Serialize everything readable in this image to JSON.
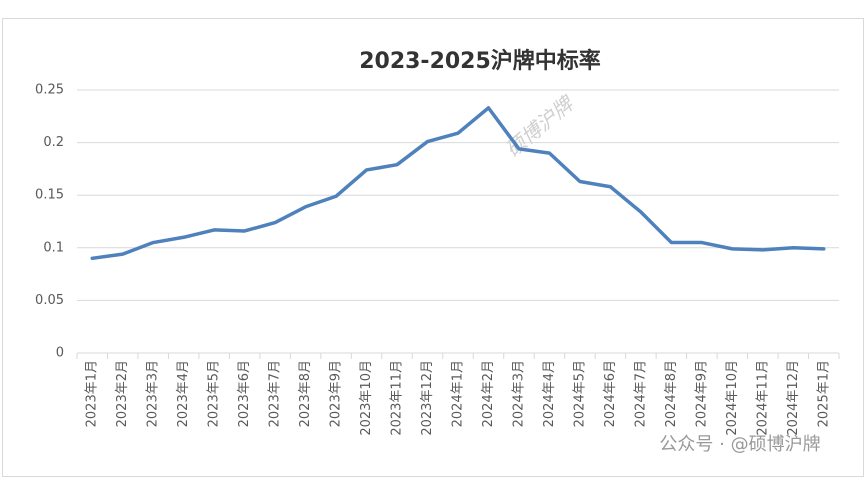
{
  "chart_data": {
    "type": "line",
    "title": "2023-2025沪牌中标率",
    "categories": [
      "2023年1月",
      "2023年2月",
      "2023年3月",
      "2023年4月",
      "2023年5月",
      "2023年6月",
      "2023年7月",
      "2023年8月",
      "2023年9月",
      "2023年10月",
      "2023年11月",
      "2023年12月",
      "2024年1月",
      "2024年2月",
      "2024年3月",
      "2024年4月",
      "2024年5月",
      "2024年6月",
      "2024年7月",
      "2024年8月",
      "2024年9月",
      "2024年10月",
      "2024年11月",
      "2024年12月",
      "2025年1月"
    ],
    "values": [
      0.09,
      0.094,
      0.105,
      0.11,
      0.117,
      0.116,
      0.124,
      0.139,
      0.149,
      0.174,
      0.179,
      0.201,
      0.209,
      0.233,
      0.194,
      0.19,
      0.163,
      0.158,
      0.134,
      0.105,
      0.105,
      0.099,
      0.098,
      0.1,
      0.099
    ],
    "color": "#4f81bd",
    "ylim": [
      0,
      0.25
    ],
    "yticks": [
      0,
      0.05,
      0.1,
      0.15,
      0.2,
      0.25
    ],
    "grid": true,
    "watermark": "硕博沪牌",
    "credit": "公众号 · @硕博沪牌"
  }
}
